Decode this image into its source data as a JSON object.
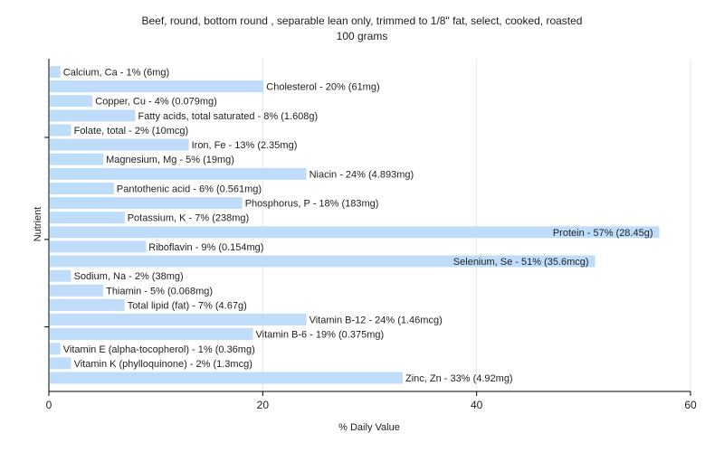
{
  "title_line1": "Beef, round, bottom round , separable lean only, trimmed to 1/8\" fat, select, cooked, roasted",
  "title_line2": "100 grams",
  "colors": {
    "bar": "#bfdcfb",
    "grid": "#e6e6e6",
    "axis": "#000000",
    "text": "#222222"
  },
  "chart_data": {
    "type": "bar",
    "orientation": "horizontal",
    "xlabel": "% Daily Value",
    "ylabel": "Nutrient",
    "xlim": [
      0,
      60
    ],
    "xticks": [
      0,
      20,
      40,
      60
    ],
    "grid": true,
    "categories": [
      "Calcium, Ca",
      "Cholesterol",
      "Copper, Cu",
      "Fatty acids, total saturated",
      "Folate, total",
      "Iron, Fe",
      "Magnesium, Mg",
      "Niacin",
      "Pantothenic acid",
      "Phosphorus, P",
      "Potassium, K",
      "Protein",
      "Riboflavin",
      "Selenium, Se",
      "Sodium, Na",
      "Thiamin",
      "Total lipid (fat)",
      "Vitamin B-12",
      "Vitamin B-6",
      "Vitamin E (alpha-tocopherol)",
      "Vitamin K (phylloquinone)",
      "Zinc, Zn"
    ],
    "values": [
      1,
      20,
      4,
      8,
      2,
      13,
      5,
      24,
      6,
      18,
      7,
      57,
      9,
      51,
      2,
      5,
      7,
      24,
      19,
      1,
      2,
      33
    ],
    "labels": [
      "Calcium, Ca - 1% (6mg)",
      "Cholesterol - 20% (61mg)",
      "Copper, Cu - 4% (0.079mg)",
      "Fatty acids, total saturated - 8% (1.608g)",
      "Folate, total - 2% (10mcg)",
      "Iron, Fe - 13% (2.35mg)",
      "Magnesium, Mg - 5% (19mg)",
      "Niacin - 24% (4.893mg)",
      "Pantothenic acid - 6% (0.561mg)",
      "Phosphorus, P - 18% (183mg)",
      "Potassium, K - 7% (238mg)",
      "Protein - 57% (28.45g)",
      "Riboflavin - 9% (0.154mg)",
      "Selenium, Se - 51% (35.6mcg)",
      "Sodium, Na - 2% (38mg)",
      "Thiamin - 5% (0.068mg)",
      "Total lipid (fat) - 7% (4.67g)",
      "Vitamin B-12 - 24% (1.46mcg)",
      "Vitamin B-6 - 19% (0.375mg)",
      "Vitamin E (alpha-tocopherol) - 1% (0.36mg)",
      "Vitamin K (phylloquinone) - 2% (1.3mcg)",
      "Zinc, Zn - 33% (4.92mg)"
    ]
  }
}
